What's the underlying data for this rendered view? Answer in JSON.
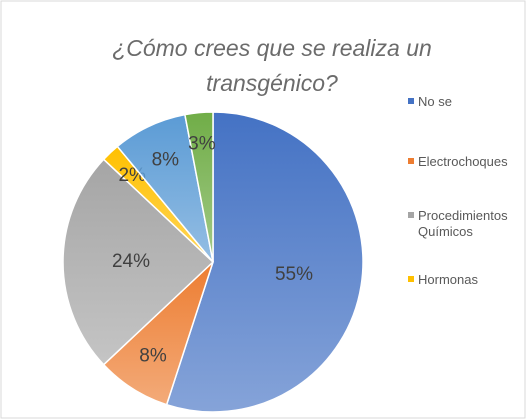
{
  "chart_data": {
    "type": "pie",
    "title": [
      "¿Cómo crees que se realiza un",
      "transgénico?"
    ],
    "categories": [
      "No se",
      "Electrochoques",
      "Procedimientos Químicos",
      "Hormonas",
      null,
      null
    ],
    "values": [
      55,
      8,
      24,
      2,
      8,
      3
    ],
    "value_labels": [
      "55%",
      "8%",
      "24%",
      "2%",
      "8%",
      "3%"
    ],
    "colors": [
      "#4472c4",
      "#ed7d31",
      "#a5a5a5",
      "#ffc000",
      "#5b9bd5",
      "#70ad47"
    ],
    "legend": "right"
  }
}
